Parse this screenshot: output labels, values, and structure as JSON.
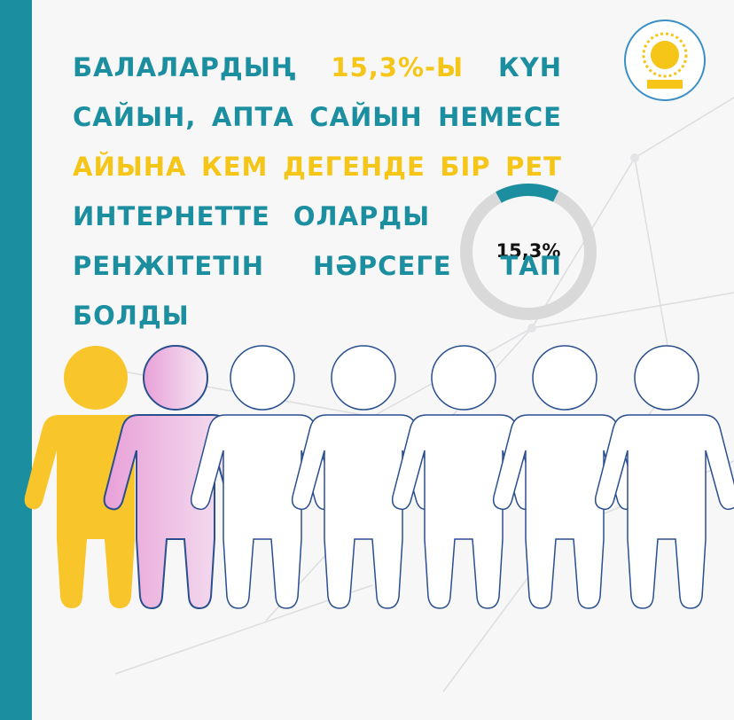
{
  "headline": {
    "lines": [
      [
        {
          "text": "БАЛАЛАРДЫҢ",
          "color": "#1b8ea0"
        },
        {
          "text": "15,3%-Ы",
          "color": "#f5c518"
        },
        {
          "text": "КҮН",
          "color": "#1b8ea0"
        }
      ],
      [
        {
          "text": "САЙЫН,",
          "color": "#1b8ea0"
        },
        {
          "text": "АПТА",
          "color": "#1b8ea0"
        },
        {
          "text": "САЙЫН",
          "color": "#1b8ea0"
        },
        {
          "text": "НЕМЕСЕ",
          "color": "#1b8ea0"
        }
      ],
      [
        {
          "text": "АЙЫНА",
          "color": "#f5c518"
        },
        {
          "text": "КЕМ",
          "color": "#f5c518"
        },
        {
          "text": "ДЕГЕНДЕ",
          "color": "#f5c518"
        },
        {
          "text": "БІР",
          "color": "#f5c518"
        },
        {
          "text": "РЕТ",
          "color": "#f5c518"
        }
      ],
      [
        {
          "text": "ИНТЕРНЕТТЕ",
          "color": "#1b8ea0"
        },
        {
          "text": "ОЛАРДЫ",
          "color": "#1b8ea0"
        }
      ],
      [
        {
          "text": "РЕНЖІТЕТІН",
          "color": "#1b8ea0"
        },
        {
          "text": "НӘРСЕГЕ",
          "color": "#1b8ea0"
        },
        {
          "text": "ТАП",
          "color": "#1b8ea0"
        }
      ],
      [
        {
          "text": "БОЛДЫ",
          "color": "#1b8ea0"
        }
      ]
    ]
  },
  "chart_data": {
    "type": "donut",
    "values": [
      15.3
    ],
    "value_labels": [
      "15,3%"
    ],
    "color": "#1b8ea0",
    "track_color": "#d9d9d9"
  }
}
